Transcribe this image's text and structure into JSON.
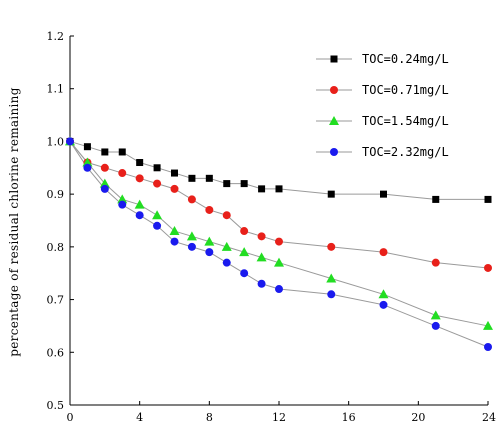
{
  "chart_data": {
    "type": "scatter",
    "title": "",
    "xlabel": "",
    "ylabel": "percentage of residual chlorine remaining",
    "xlim": [
      0,
      24
    ],
    "ylim": [
      0.5,
      1.2
    ],
    "xticks": [
      0,
      4,
      8,
      12,
      16,
      20,
      24
    ],
    "xtick_labels": [
      "0",
      "4",
      "8",
      "12",
      "16",
      "20",
      "24"
    ],
    "yticks": [
      0.5,
      0.6,
      0.7,
      0.8,
      0.9,
      1.0,
      1.1,
      1.2
    ],
    "ytick_labels": [
      "0.5",
      "0.6",
      "0.7",
      "0.8",
      "0.9",
      "1.0",
      "1.1",
      "1.2"
    ],
    "grid": false,
    "legend_position": "top-right",
    "connected_lines": true,
    "series": [
      {
        "name": "TOC=0.24mg/L",
        "marker": "square",
        "color": "#000000",
        "x": [
          0,
          1,
          2,
          3,
          4,
          5,
          6,
          7,
          8,
          9,
          10,
          11,
          12,
          15,
          18,
          21,
          24
        ],
        "y": [
          1.0,
          0.99,
          0.98,
          0.98,
          0.96,
          0.95,
          0.94,
          0.93,
          0.93,
          0.92,
          0.92,
          0.91,
          0.91,
          0.9,
          0.9,
          0.89,
          0.89
        ]
      },
      {
        "name": "TOC=0.71mg/L",
        "marker": "circle",
        "color": "#e8201a",
        "x": [
          0,
          1,
          2,
          3,
          4,
          5,
          6,
          7,
          8,
          9,
          10,
          11,
          12,
          15,
          18,
          21,
          24
        ],
        "y": [
          1.0,
          0.96,
          0.95,
          0.94,
          0.93,
          0.92,
          0.91,
          0.89,
          0.87,
          0.86,
          0.83,
          0.82,
          0.81,
          0.8,
          0.79,
          0.77,
          0.76
        ]
      },
      {
        "name": "TOC=1.54mg/L",
        "marker": "triangle",
        "color": "#22dd22",
        "x": [
          0,
          1,
          2,
          3,
          4,
          5,
          6,
          7,
          8,
          9,
          10,
          11,
          12,
          15,
          18,
          21,
          24
        ],
        "y": [
          1.0,
          0.96,
          0.92,
          0.89,
          0.88,
          0.86,
          0.83,
          0.82,
          0.81,
          0.8,
          0.79,
          0.78,
          0.77,
          0.74,
          0.71,
          0.67,
          0.65
        ]
      },
      {
        "name": "TOC=2.32mg/L",
        "marker": "circle",
        "color": "#1a1aee",
        "x": [
          0,
          1,
          2,
          3,
          4,
          5,
          6,
          7,
          8,
          9,
          10,
          11,
          12,
          15,
          18,
          21,
          24
        ],
        "y": [
          1.0,
          0.95,
          0.91,
          0.88,
          0.86,
          0.84,
          0.81,
          0.8,
          0.79,
          0.77,
          0.75,
          0.73,
          0.72,
          0.71,
          0.69,
          0.65,
          0.61
        ]
      }
    ]
  }
}
